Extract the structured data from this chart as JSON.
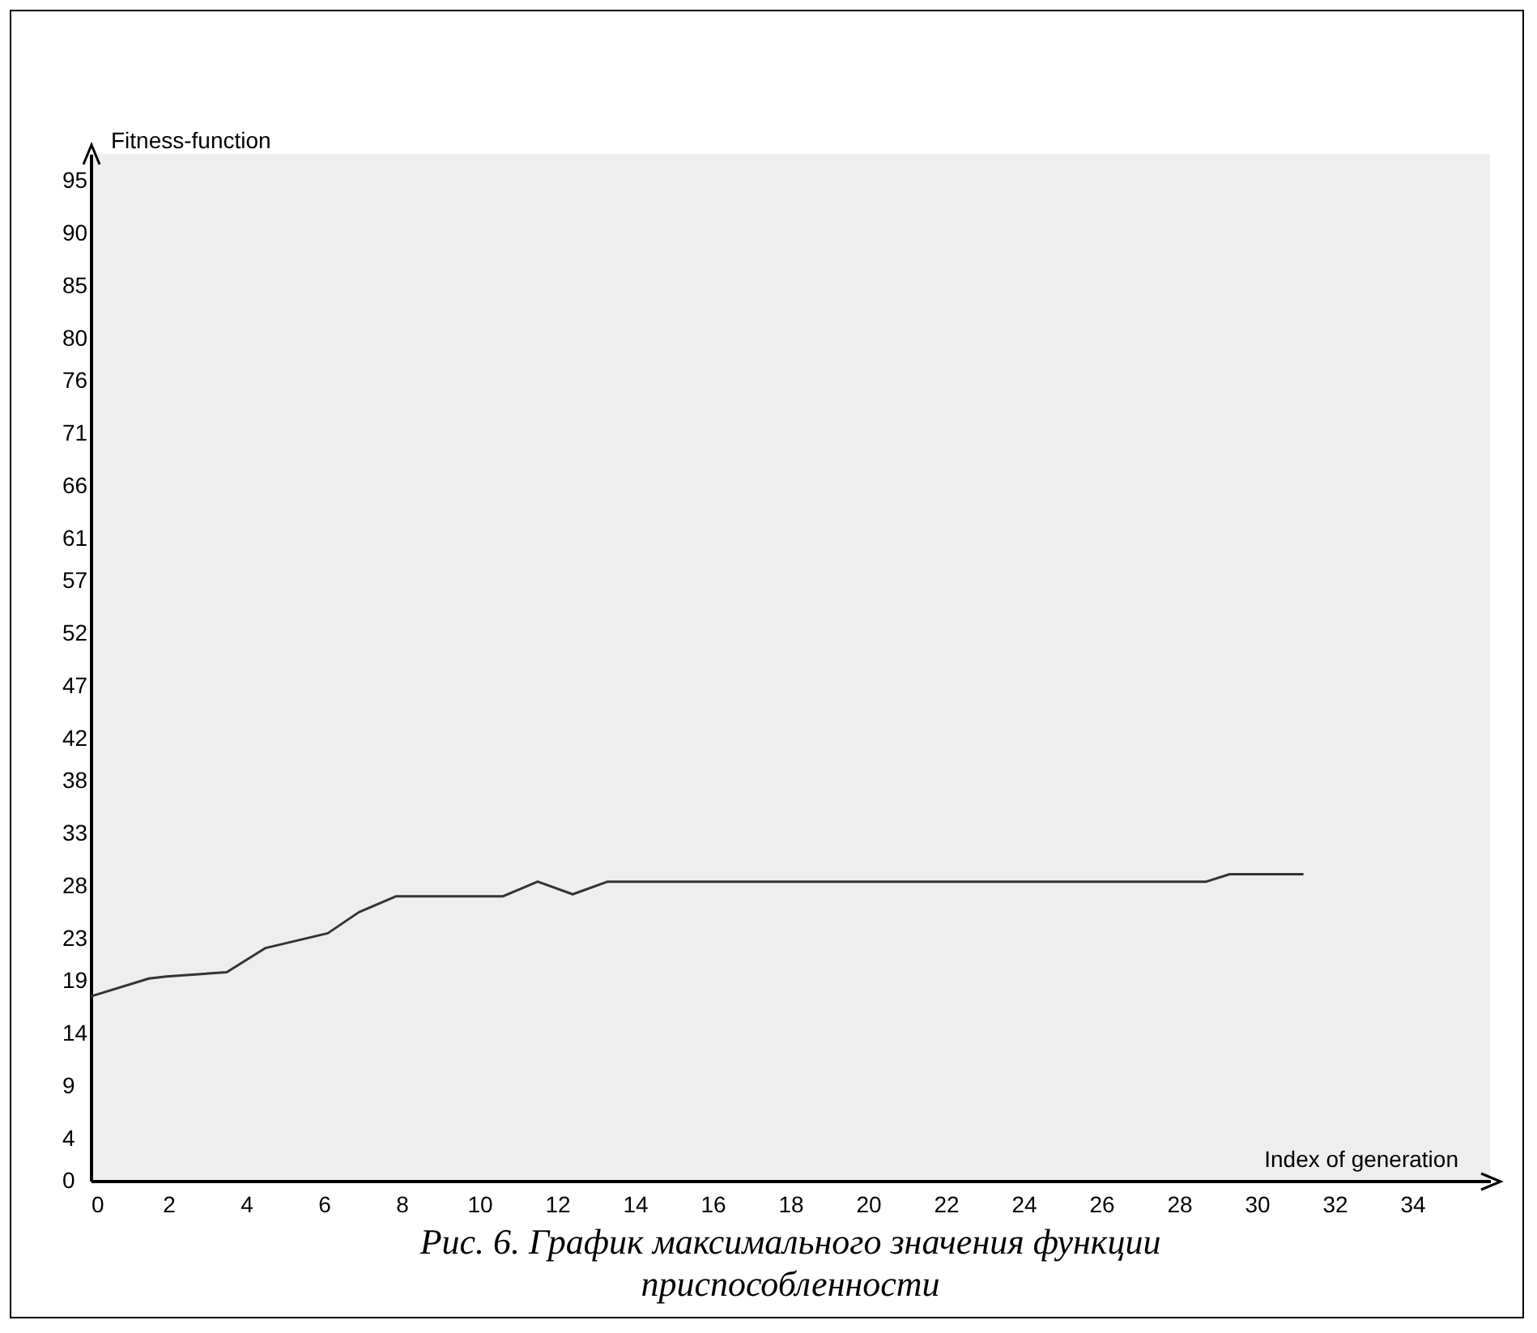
{
  "chart_data": {
    "type": "line",
    "xlabel": "Index of generation",
    "ylabel": "Fitness-function",
    "annotations": [
      "Рис. 6. График максимального значения функции приспособленности"
    ],
    "x": [
      0,
      1.5,
      1.95,
      3.5,
      4.5,
      6.1,
      6.9,
      7.85,
      10.6,
      11.5,
      12.4,
      13.3,
      28.7,
      29.3,
      31.2
    ],
    "series": [
      {
        "color": "#333333",
        "values": [
          17.5,
          19.2,
          19.4,
          19.8,
          22.1,
          23.5,
          25.5,
          27.0,
          27.0,
          28.4,
          27.2,
          28.4,
          28.4,
          29.1,
          29.1
        ]
      }
    ],
    "xlim": [
      0,
      36
    ],
    "ylim": [
      0,
      97.5
    ],
    "xticks": [
      0,
      2,
      4,
      6,
      8,
      10,
      12,
      14,
      16,
      18,
      20,
      22,
      24,
      26,
      28,
      30,
      32,
      34
    ],
    "yticks": [
      0,
      4,
      9,
      14,
      19,
      23,
      28,
      33,
      38,
      42,
      47,
      52,
      57,
      61,
      66,
      71,
      76,
      80,
      85,
      90,
      95
    ],
    "grid": false,
    "legend": false,
    "marker": "none",
    "line_style": "solid"
  }
}
